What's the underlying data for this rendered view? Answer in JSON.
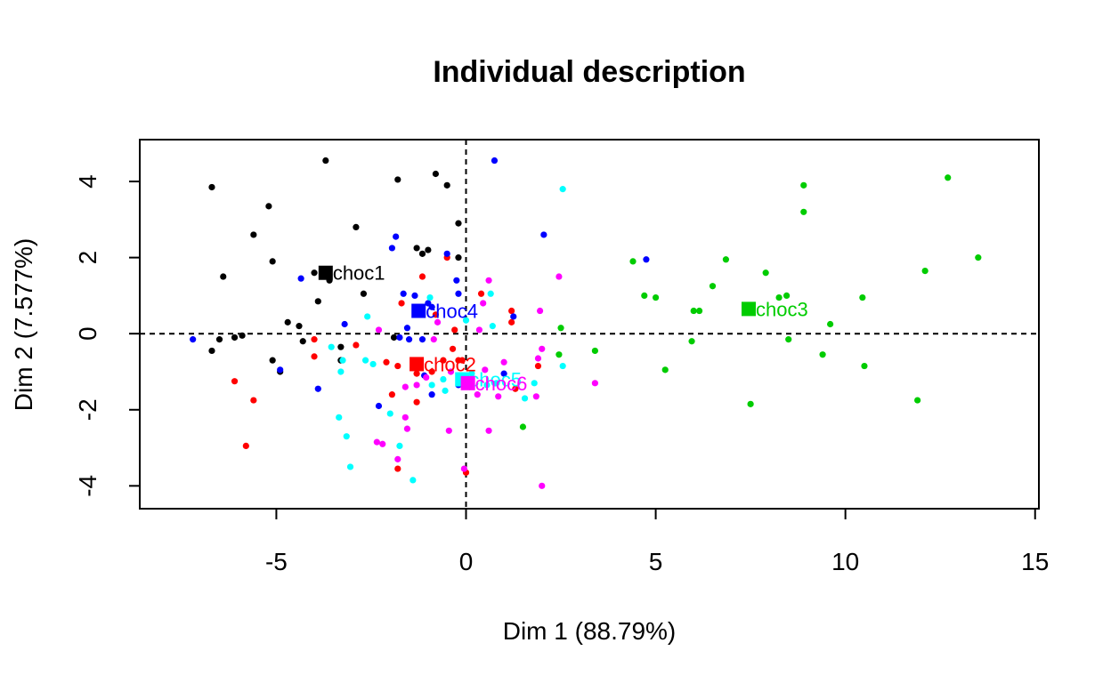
{
  "chart_data": {
    "type": "scatter",
    "title": "Individual description",
    "xlabel": "Dim 1 (88.79%)",
    "ylabel": "Dim 2 (7.577%)",
    "xlim": [
      -8.6,
      15.1
    ],
    "ylim": [
      -4.6,
      5.1
    ],
    "x_ticks": [
      -5,
      0,
      5,
      10,
      15
    ],
    "y_ticks": [
      -4,
      -2,
      0,
      2,
      4
    ],
    "x_tick_labels": [
      "-5",
      "0",
      "5",
      "10",
      "15"
    ],
    "y_tick_labels": [
      "-4",
      "-2",
      "0",
      "2",
      "4"
    ],
    "reference_lines": {
      "x": 0,
      "y": 0,
      "style": "dashed"
    },
    "grid": false,
    "series": [
      {
        "name": "choc1",
        "color": "#000000",
        "centroid": {
          "x": -3.7,
          "y": 1.6
        },
        "points": [
          [
            -3.7,
            4.55
          ],
          [
            -6.7,
            3.85
          ],
          [
            -5.2,
            3.35
          ],
          [
            -5.6,
            2.6
          ],
          [
            -1.8,
            4.05
          ],
          [
            -0.8,
            4.2
          ],
          [
            -0.5,
            3.9
          ],
          [
            -2.9,
            2.8
          ],
          [
            -0.2,
            2.9
          ],
          [
            -1.0,
            2.2
          ],
          [
            -1.3,
            2.25
          ],
          [
            -1.15,
            2.1
          ],
          [
            -5.1,
            1.9
          ],
          [
            -6.4,
            1.5
          ],
          [
            -3.6,
            1.4
          ],
          [
            -2.7,
            1.05
          ],
          [
            -0.2,
            2.0
          ],
          [
            -4.0,
            1.6
          ],
          [
            -4.7,
            0.3
          ],
          [
            -4.4,
            0.2
          ],
          [
            -3.9,
            0.85
          ],
          [
            -6.1,
            -0.1
          ],
          [
            -5.9,
            -0.05
          ],
          [
            -6.5,
            -0.15
          ],
          [
            -6.7,
            -0.45
          ],
          [
            -4.3,
            -0.2
          ],
          [
            -3.3,
            -0.35
          ],
          [
            -5.1,
            -0.7
          ],
          [
            -4.9,
            -1.0
          ],
          [
            -3.3,
            -0.7
          ],
          [
            -1.9,
            -0.1
          ]
        ]
      },
      {
        "name": "choc2",
        "color": "#ff0000",
        "centroid": {
          "x": -1.3,
          "y": -0.8
        },
        "points": [
          [
            -0.5,
            2.0
          ],
          [
            -1.15,
            1.5
          ],
          [
            0.4,
            1.05
          ],
          [
            -1.7,
            0.8
          ],
          [
            -0.8,
            0.5
          ],
          [
            -0.3,
            0.1
          ],
          [
            1.2,
            0.3
          ],
          [
            -4.0,
            -0.6
          ],
          [
            -4.0,
            -0.15
          ],
          [
            -2.9,
            -0.3
          ],
          [
            -2.1,
            -0.75
          ],
          [
            -1.8,
            -0.85
          ],
          [
            -1.3,
            -1.05
          ],
          [
            -0.9,
            -1.0
          ],
          [
            -0.6,
            -0.7
          ],
          [
            -0.35,
            -0.4
          ],
          [
            -0.2,
            -0.7
          ],
          [
            -6.1,
            -1.25
          ],
          [
            -5.6,
            -1.75
          ],
          [
            -1.95,
            -1.6
          ],
          [
            -1.3,
            -1.8
          ],
          [
            0.1,
            -1.4
          ],
          [
            1.3,
            -1.45
          ],
          [
            1.9,
            -0.85
          ],
          [
            1.2,
            0.6
          ],
          [
            -5.8,
            -2.95
          ],
          [
            -1.8,
            -3.55
          ],
          [
            0.0,
            -3.65
          ],
          [
            -0.1,
            -0.7
          ]
        ]
      },
      {
        "name": "choc3",
        "color": "#00cc00",
        "centroid": {
          "x": 7.45,
          "y": 0.65
        },
        "points": [
          [
            12.7,
            4.1
          ],
          [
            8.9,
            3.9
          ],
          [
            8.9,
            3.2
          ],
          [
            13.5,
            2.0
          ],
          [
            12.1,
            1.65
          ],
          [
            4.4,
            1.9
          ],
          [
            6.85,
            1.95
          ],
          [
            7.9,
            1.6
          ],
          [
            6.5,
            1.25
          ],
          [
            4.7,
            1.0
          ],
          [
            5.0,
            0.95
          ],
          [
            8.25,
            0.95
          ],
          [
            8.45,
            1.0
          ],
          [
            10.45,
            0.95
          ],
          [
            6.0,
            0.6
          ],
          [
            6.15,
            0.6
          ],
          [
            9.6,
            0.25
          ],
          [
            2.5,
            0.15
          ],
          [
            5.95,
            -0.2
          ],
          [
            8.5,
            -0.15
          ],
          [
            3.4,
            -0.45
          ],
          [
            2.45,
            -0.55
          ],
          [
            9.4,
            -0.55
          ],
          [
            5.25,
            -0.95
          ],
          [
            10.5,
            -0.85
          ],
          [
            7.5,
            -1.85
          ],
          [
            11.9,
            -1.75
          ],
          [
            1.5,
            -2.45
          ]
        ]
      },
      {
        "name": "choc4",
        "color": "#0000ff",
        "centroid": {
          "x": -1.25,
          "y": 0.6
        },
        "points": [
          [
            0.75,
            4.55
          ],
          [
            2.05,
            2.6
          ],
          [
            -1.85,
            2.55
          ],
          [
            -1.95,
            2.25
          ],
          [
            -4.35,
            1.45
          ],
          [
            4.75,
            1.95
          ],
          [
            -0.25,
            1.4
          ],
          [
            -1.65,
            1.05
          ],
          [
            -0.2,
            1.05
          ],
          [
            -1.0,
            0.8
          ],
          [
            -0.9,
            0.7
          ],
          [
            -1.35,
            1.0
          ],
          [
            1.25,
            0.45
          ],
          [
            -3.2,
            0.25
          ],
          [
            -1.55,
            0.15
          ],
          [
            -7.2,
            -0.15
          ],
          [
            -1.75,
            -0.1
          ],
          [
            -1.5,
            -0.15
          ],
          [
            -1.15,
            -0.15
          ],
          [
            -4.9,
            -0.95
          ],
          [
            -3.9,
            -1.45
          ],
          [
            -1.1,
            -1.1
          ],
          [
            -0.9,
            -1.6
          ],
          [
            -0.2,
            -1.35
          ],
          [
            1.0,
            -1.05
          ],
          [
            -2.3,
            -1.9
          ],
          [
            -0.5,
            2.1
          ]
        ]
      },
      {
        "name": "choc5",
        "color": "#00ffff",
        "centroid": {
          "x": -0.1,
          "y": -1.2
        },
        "points": [
          [
            2.55,
            3.8
          ],
          [
            -0.95,
            0.95
          ],
          [
            0.65,
            1.05
          ],
          [
            0.0,
            0.35
          ],
          [
            -2.6,
            0.45
          ],
          [
            0.7,
            0.2
          ],
          [
            -3.55,
            -0.35
          ],
          [
            -3.3,
            -1.0
          ],
          [
            -3.25,
            -0.7
          ],
          [
            -2.65,
            -0.7
          ],
          [
            -2.45,
            -0.8
          ],
          [
            -1.4,
            -0.9
          ],
          [
            -0.6,
            -1.2
          ],
          [
            -0.55,
            -1.5
          ],
          [
            0.15,
            -1.05
          ],
          [
            0.55,
            -1.35
          ],
          [
            0.8,
            -1.3
          ],
          [
            1.8,
            -1.3
          ],
          [
            1.55,
            -1.7
          ],
          [
            2.55,
            -0.85
          ],
          [
            -3.35,
            -2.2
          ],
          [
            -3.15,
            -2.7
          ],
          [
            -3.05,
            -3.5
          ],
          [
            -1.75,
            -2.95
          ],
          [
            -1.4,
            -3.85
          ],
          [
            -2.0,
            -2.1
          ],
          [
            -0.9,
            -1.35
          ]
        ]
      },
      {
        "name": "choc6",
        "color": "#ff00ff",
        "centroid": {
          "x": 0.05,
          "y": -1.3
        },
        "points": [
          [
            0.6,
            1.4
          ],
          [
            2.45,
            1.5
          ],
          [
            0.45,
            0.8
          ],
          [
            1.95,
            0.6
          ],
          [
            -0.75,
            0.3
          ],
          [
            0.35,
            0.1
          ],
          [
            -2.3,
            0.1
          ],
          [
            -0.85,
            -0.15
          ],
          [
            2.0,
            -0.4
          ],
          [
            1.9,
            -0.65
          ],
          [
            1.0,
            -0.75
          ],
          [
            0.5,
            -0.95
          ],
          [
            -0.4,
            -1.0
          ],
          [
            -1.05,
            -1.15
          ],
          [
            -1.6,
            -1.4
          ],
          [
            -1.3,
            -1.35
          ],
          [
            3.4,
            -1.3
          ],
          [
            0.85,
            -1.65
          ],
          [
            1.85,
            -1.65
          ],
          [
            0.3,
            -1.6
          ],
          [
            -1.6,
            -2.2
          ],
          [
            -1.55,
            -2.5
          ],
          [
            -0.45,
            -2.55
          ],
          [
            0.6,
            -2.55
          ],
          [
            -2.2,
            -2.9
          ],
          [
            -2.35,
            -2.85
          ],
          [
            -1.8,
            -3.3
          ],
          [
            -0.05,
            -3.55
          ],
          [
            2.0,
            -4.0
          ]
        ]
      }
    ]
  }
}
